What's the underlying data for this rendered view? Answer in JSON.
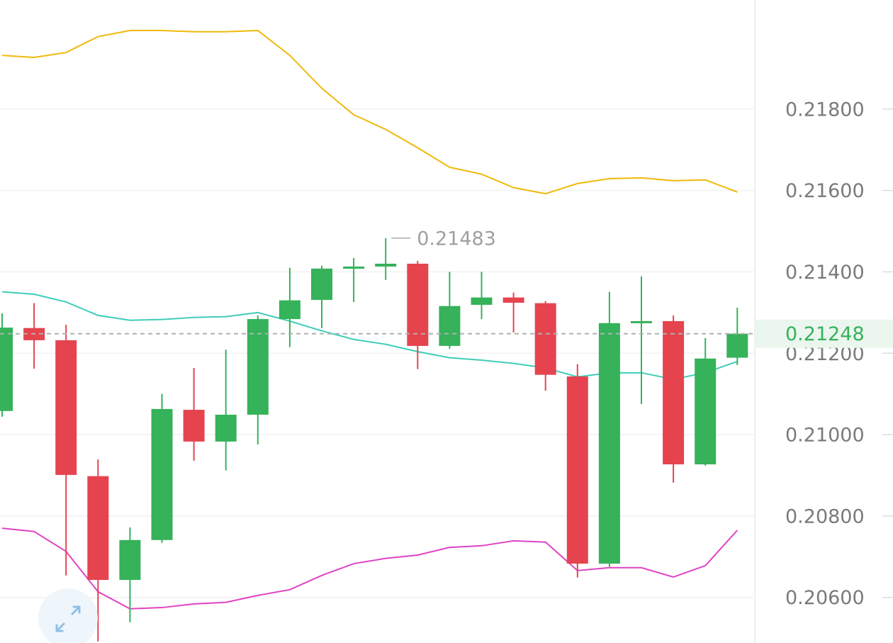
{
  "chart_data": {
    "type": "candlestick",
    "up_color": "#35b25a",
    "down_color": "#e5444f",
    "open": [
      0.21058,
      0.21262,
      0.21232,
      0.20898,
      0.20643,
      0.20741,
      0.21061,
      0.20983,
      0.21049,
      0.21284,
      0.21331,
      0.2141,
      0.21413,
      0.2142,
      0.21218,
      0.21319,
      0.21337,
      0.21323,
      0.21143,
      0.20683,
      0.21274,
      0.21279,
      0.20927,
      0.21189
    ],
    "high": [
      0.21298,
      0.21323,
      0.2127,
      0.20939,
      0.20772,
      0.211,
      0.21164,
      0.21209,
      0.21293,
      0.2141,
      0.21415,
      0.21434,
      0.21483,
      0.21427,
      0.214,
      0.214,
      0.21349,
      0.21328,
      0.21173,
      0.21351,
      0.21389,
      0.21293,
      0.21237,
      0.21312
    ],
    "low": [
      0.21044,
      0.21162,
      0.20654,
      0.20492,
      0.20539,
      0.20734,
      0.20936,
      0.20912,
      0.20976,
      0.21215,
      0.21262,
      0.21326,
      0.2138,
      0.21161,
      0.21211,
      0.21284,
      0.21251,
      0.21108,
      0.20649,
      0.20675,
      0.21075,
      0.20882,
      0.20924,
      0.21171
    ],
    "close": [
      0.21263,
      0.21232,
      0.20901,
      0.20643,
      0.20741,
      0.21063,
      0.20983,
      0.21049,
      0.21284,
      0.2133,
      0.21408,
      0.21413,
      0.2142,
      0.21218,
      0.21316,
      0.21337,
      0.21324,
      0.21147,
      0.20683,
      0.21274,
      0.21279,
      0.20927,
      0.21187,
      0.21248
    ],
    "lines": [
      {
        "color": "#f0b90b",
        "values": [
          0.21932,
          0.21927,
          0.21939,
          0.21978,
          0.21993,
          0.21993,
          0.2199,
          0.2199,
          0.21993,
          0.21932,
          0.21851,
          0.21786,
          0.2175,
          0.21705,
          0.21657,
          0.2164,
          0.21607,
          0.21592,
          0.21617,
          0.21629,
          0.21631,
          0.21624,
          0.21626,
          0.21596
        ]
      },
      {
        "color": "#3fcdb8",
        "values": [
          0.21351,
          0.21345,
          0.21326,
          0.21293,
          0.21281,
          0.21283,
          0.21288,
          0.2129,
          0.213,
          0.21279,
          0.21255,
          0.21234,
          0.21222,
          0.21204,
          0.21189,
          0.21183,
          0.21175,
          0.21164,
          0.21142,
          0.21152,
          0.21152,
          0.21136,
          0.21152,
          0.2118
        ]
      },
      {
        "color": "#e043c3",
        "values": [
          0.2077,
          0.20762,
          0.20713,
          0.20614,
          0.20572,
          0.20575,
          0.20584,
          0.20588,
          0.20605,
          0.20619,
          0.20654,
          0.20683,
          0.20696,
          0.20704,
          0.20723,
          0.20727,
          0.20739,
          0.20736,
          0.20666,
          0.20673,
          0.20673,
          0.2065,
          0.20678,
          0.20765
        ]
      }
    ],
    "ylim": [
      0.20488,
      0.22068
    ],
    "yticks": [
      {
        "value": 0.206,
        "label": "0.20600"
      },
      {
        "value": 0.208,
        "label": "0.20800"
      },
      {
        "value": 0.21,
        "label": "0.21000"
      },
      {
        "value": 0.212,
        "label": "0.21200"
      },
      {
        "value": 0.214,
        "label": "0.21400"
      },
      {
        "value": 0.216,
        "label": "0.21600"
      },
      {
        "value": 0.218,
        "label": "0.21800"
      }
    ],
    "grid": true,
    "current_price": 0.21248,
    "max_label": 0.21483
  }
}
